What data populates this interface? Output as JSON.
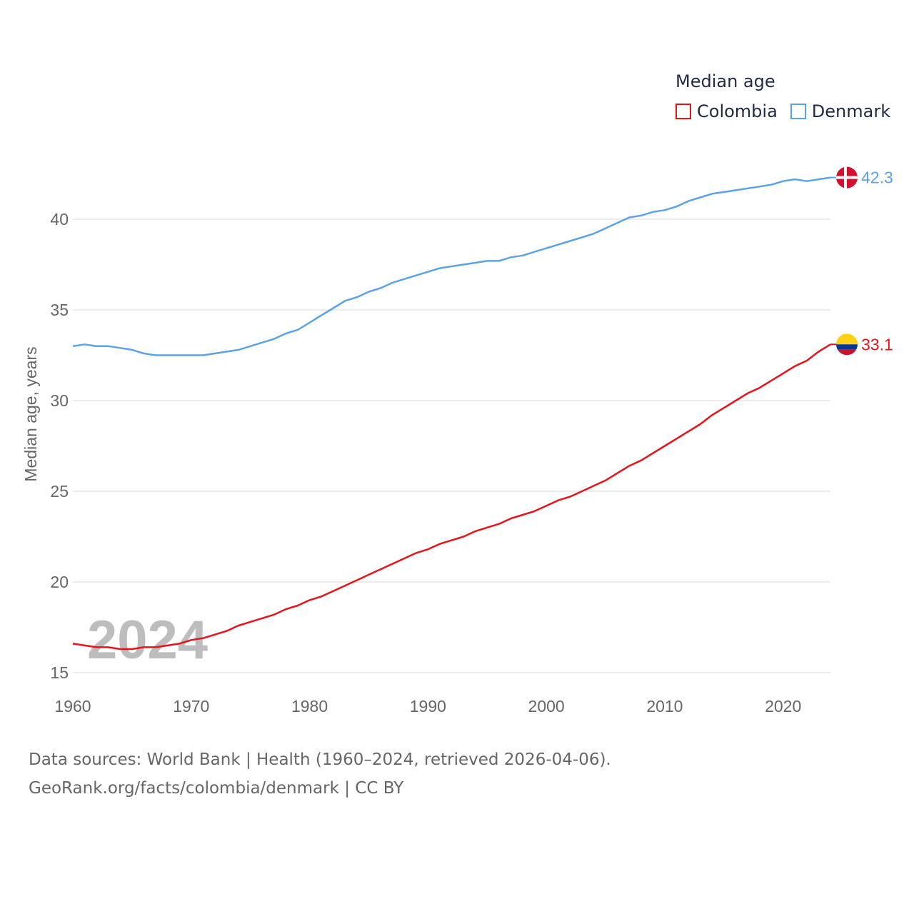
{
  "legend": {
    "title": "Median age",
    "items": [
      {
        "label": "Colombia",
        "color": "#e8141c"
      },
      {
        "label": "Denmark",
        "color": "#5ba3e6"
      }
    ]
  },
  "chart_data": {
    "type": "line",
    "title": "Median age",
    "xlabel": "",
    "ylabel": "Median age, years",
    "xlim": [
      1960,
      2024
    ],
    "ylim": [
      15,
      43
    ],
    "xticks": [
      1960,
      1970,
      1980,
      1990,
      2000,
      2010,
      2020
    ],
    "yticks": [
      15,
      20,
      25,
      30,
      35,
      40
    ],
    "grid": true,
    "watermark_year": "2024",
    "x": [
      1960,
      1961,
      1962,
      1963,
      1964,
      1965,
      1966,
      1967,
      1968,
      1969,
      1970,
      1971,
      1972,
      1973,
      1974,
      1975,
      1976,
      1977,
      1978,
      1979,
      1980,
      1981,
      1982,
      1983,
      1984,
      1985,
      1986,
      1987,
      1988,
      1989,
      1990,
      1991,
      1992,
      1993,
      1994,
      1995,
      1996,
      1997,
      1998,
      1999,
      2000,
      2001,
      2002,
      2003,
      2004,
      2005,
      2006,
      2007,
      2008,
      2009,
      2010,
      2011,
      2012,
      2013,
      2014,
      2015,
      2016,
      2017,
      2018,
      2019,
      2020,
      2021,
      2022,
      2023,
      2024
    ],
    "series": [
      {
        "name": "Colombia",
        "color": "#e8141c",
        "end_label": "33.1",
        "values": [
          16.6,
          16.5,
          16.4,
          16.4,
          16.3,
          16.3,
          16.4,
          16.4,
          16.5,
          16.6,
          16.8,
          16.9,
          17.1,
          17.3,
          17.6,
          17.8,
          18.0,
          18.2,
          18.5,
          18.7,
          19.0,
          19.2,
          19.5,
          19.8,
          20.1,
          20.4,
          20.7,
          21.0,
          21.3,
          21.6,
          21.8,
          22.1,
          22.3,
          22.5,
          22.8,
          23.0,
          23.2,
          23.5,
          23.7,
          23.9,
          24.2,
          24.5,
          24.7,
          25.0,
          25.3,
          25.6,
          26.0,
          26.4,
          26.7,
          27.1,
          27.5,
          27.9,
          28.3,
          28.7,
          29.2,
          29.6,
          30.0,
          30.4,
          30.7,
          31.1,
          31.5,
          31.9,
          32.2,
          32.7,
          33.1
        ]
      },
      {
        "name": "Denmark",
        "color": "#5ba3e6",
        "end_label": "42.3",
        "values": [
          33.0,
          33.1,
          33.0,
          33.0,
          32.9,
          32.8,
          32.6,
          32.5,
          32.5,
          32.5,
          32.5,
          32.5,
          32.6,
          32.7,
          32.8,
          33.0,
          33.2,
          33.4,
          33.7,
          33.9,
          34.3,
          34.7,
          35.1,
          35.5,
          35.7,
          36.0,
          36.2,
          36.5,
          36.7,
          36.9,
          37.1,
          37.3,
          37.4,
          37.5,
          37.6,
          37.7,
          37.7,
          37.9,
          38.0,
          38.2,
          38.4,
          38.6,
          38.8,
          39.0,
          39.2,
          39.5,
          39.8,
          40.1,
          40.2,
          40.4,
          40.5,
          40.7,
          41.0,
          41.2,
          41.4,
          41.5,
          41.6,
          41.7,
          41.8,
          41.9,
          42.1,
          42.2,
          42.1,
          42.2,
          42.3
        ]
      }
    ]
  },
  "footer": {
    "line1": "Data sources: World Bank | Health (1960–2024, retrieved 2026-04-06).",
    "line2": "GeoRank.org/facts/colombia/denmark | CC BY"
  }
}
